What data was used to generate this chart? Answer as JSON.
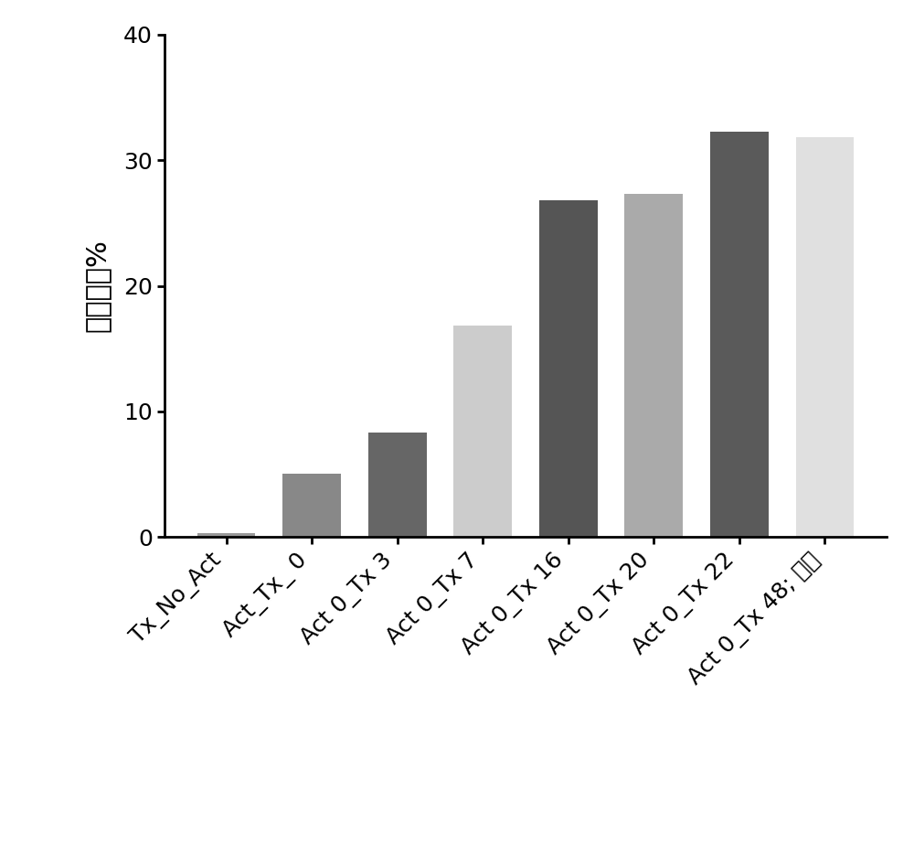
{
  "categories": [
    "Tx_No_Act",
    "Act_Tx_ 0",
    "Act 0_Tx 3",
    "Act 0_Tx 7",
    "Act 0_Tx 16",
    "Act 0_Tx 20",
    "Act 0_Tx 22",
    "Act 0_Tx 48; 对照"
  ],
  "values": [
    0.3,
    5.0,
    8.3,
    16.8,
    26.8,
    27.3,
    32.3,
    31.8
  ],
  "bar_colors": [
    "#999999",
    "#888888",
    "#666666",
    "#cccccc",
    "#555555",
    "#aaaaaa",
    "#5a5a5a",
    "#e0e0e0"
  ],
  "ylabel": "转导效率%",
  "ylim": [
    0,
    40
  ],
  "yticks": [
    0,
    10,
    20,
    30,
    40
  ],
  "background_color": "#ffffff",
  "bar_width": 0.68,
  "tick_fontsize": 18,
  "ylabel_fontsize": 22,
  "axis_linewidth": 2.0
}
